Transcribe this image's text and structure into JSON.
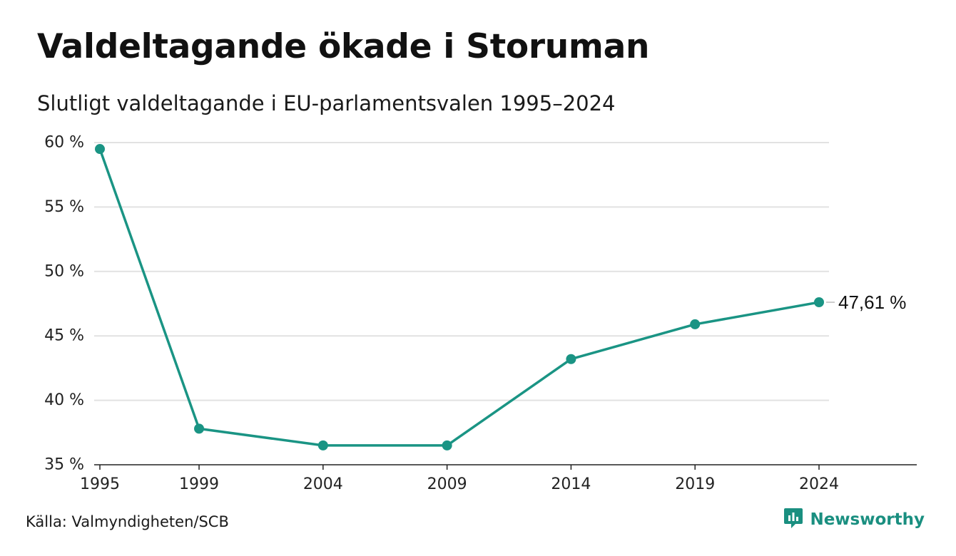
{
  "title": "Valdeltagande ökade i Storuman",
  "subtitle": "Slutligt valdeltagande i EU-parlamentsvalen 1995–2024",
  "source": "Källa: Valmyndigheten/SCB",
  "brand": {
    "name": "Newsworthy",
    "icon": "newsworthy-logo-icon",
    "color": "#1a8f80"
  },
  "colors": {
    "line": "#1a9484",
    "grid": "#e2e2e2",
    "axis": "#222222"
  },
  "chart_data": {
    "type": "line",
    "x": [
      1995,
      1999,
      2004,
      2009,
      2014,
      2019,
      2024
    ],
    "x_tick_labels": [
      "1995",
      "1999",
      "2004",
      "2009",
      "2014",
      "2019",
      "2024"
    ],
    "values": [
      59.5,
      37.8,
      36.5,
      36.5,
      43.2,
      45.9,
      47.61
    ],
    "ylim": [
      35,
      60
    ],
    "y_ticks": [
      35,
      40,
      45,
      50,
      55,
      60
    ],
    "y_tick_labels": [
      "35 %",
      "40 %",
      "45 %",
      "50 %",
      "55 %",
      "60 %"
    ],
    "end_label": "47,61 %",
    "grid": true,
    "markers": true
  }
}
